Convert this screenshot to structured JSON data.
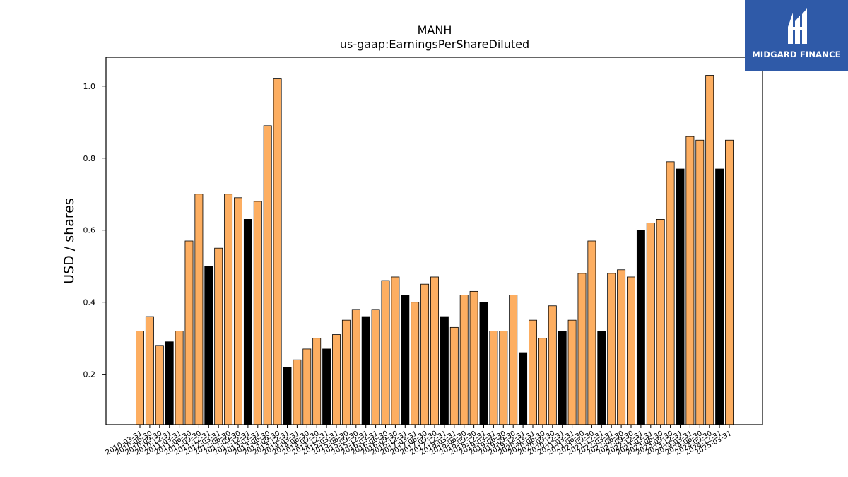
{
  "chart_data": {
    "type": "bar",
    "title": "MANH",
    "subtitle": "us-gaap:EarningsPerShareDiluted",
    "xlabel": "",
    "ylabel": "USD / shares",
    "ylim": [
      0.06,
      1.08
    ],
    "yticks": [
      0.2,
      0.4,
      0.6,
      0.8,
      1.0
    ],
    "grid": false,
    "colors": {
      "quarter": "#fdae61",
      "annual": "#000000",
      "edge": "#000000"
    },
    "categories": [
      "2010-03-31",
      "2010-06-30",
      "2010-09-30",
      "2010-12-31",
      "2011-03-31",
      "2011-06-30",
      "2011-09-30",
      "2011-12-31",
      "2012-03-31",
      "2012-06-30",
      "2012-09-30",
      "2012-12-31",
      "2013-03-31",
      "2013-06-30",
      "2013-09-30",
      "2013-12-31",
      "2014-03-31",
      "2014-06-30",
      "2014-09-30",
      "2014-12-31",
      "2015-03-31",
      "2015-06-30",
      "2015-09-30",
      "2015-12-31",
      "2016-03-31",
      "2016-06-30",
      "2016-09-30",
      "2016-12-31",
      "2017-03-31",
      "2017-06-30",
      "2017-09-30",
      "2017-12-31",
      "2018-03-31",
      "2018-06-30",
      "2018-09-30",
      "2018-12-31",
      "2019-03-31",
      "2019-06-30",
      "2019-09-30",
      "2019-12-31",
      "2020-03-31",
      "2020-06-30",
      "2020-09-30",
      "2020-12-31",
      "2021-03-31",
      "2021-06-30",
      "2021-09-30",
      "2021-12-31",
      "2022-03-31",
      "2022-06-30",
      "2022-09-30",
      "2022-12-31",
      "2023-03-31",
      "2023-06-30",
      "2023-09-30",
      "2023-12-31",
      "2024-03-31",
      "2024-06-30",
      "2024-09-30",
      "2024-12-31",
      "2025-03-31"
    ],
    "values": [
      0.32,
      0.36,
      0.28,
      0.29,
      0.32,
      0.57,
      0.7,
      0.5,
      0.55,
      0.7,
      0.69,
      0.63,
      0.68,
      0.89,
      1.02,
      0.22,
      0.24,
      0.27,
      0.3,
      0.27,
      0.31,
      0.35,
      0.38,
      0.36,
      0.38,
      0.46,
      0.47,
      0.42,
      0.4,
      0.45,
      0.47,
      0.36,
      0.33,
      0.42,
      0.43,
      0.4,
      0.32,
      0.32,
      0.42,
      0.26,
      0.35,
      0.3,
      0.39,
      0.32,
      0.35,
      0.48,
      0.57,
      0.32,
      0.48,
      0.49,
      0.47,
      0.6,
      0.62,
      0.63,
      0.79,
      0.77,
      0.86,
      0.85,
      1.03,
      0.77,
      0.85
    ],
    "highlight": [
      false,
      false,
      false,
      true,
      false,
      false,
      false,
      true,
      false,
      false,
      false,
      true,
      false,
      false,
      false,
      true,
      false,
      false,
      false,
      true,
      false,
      false,
      false,
      true,
      false,
      false,
      false,
      true,
      false,
      false,
      false,
      true,
      false,
      false,
      false,
      true,
      false,
      false,
      false,
      true,
      false,
      false,
      false,
      true,
      false,
      false,
      false,
      true,
      false,
      false,
      false,
      true,
      false,
      false,
      false,
      true,
      false,
      false,
      false,
      true,
      false
    ]
  },
  "logo": {
    "text": "MIDGARD FINANCE"
  }
}
